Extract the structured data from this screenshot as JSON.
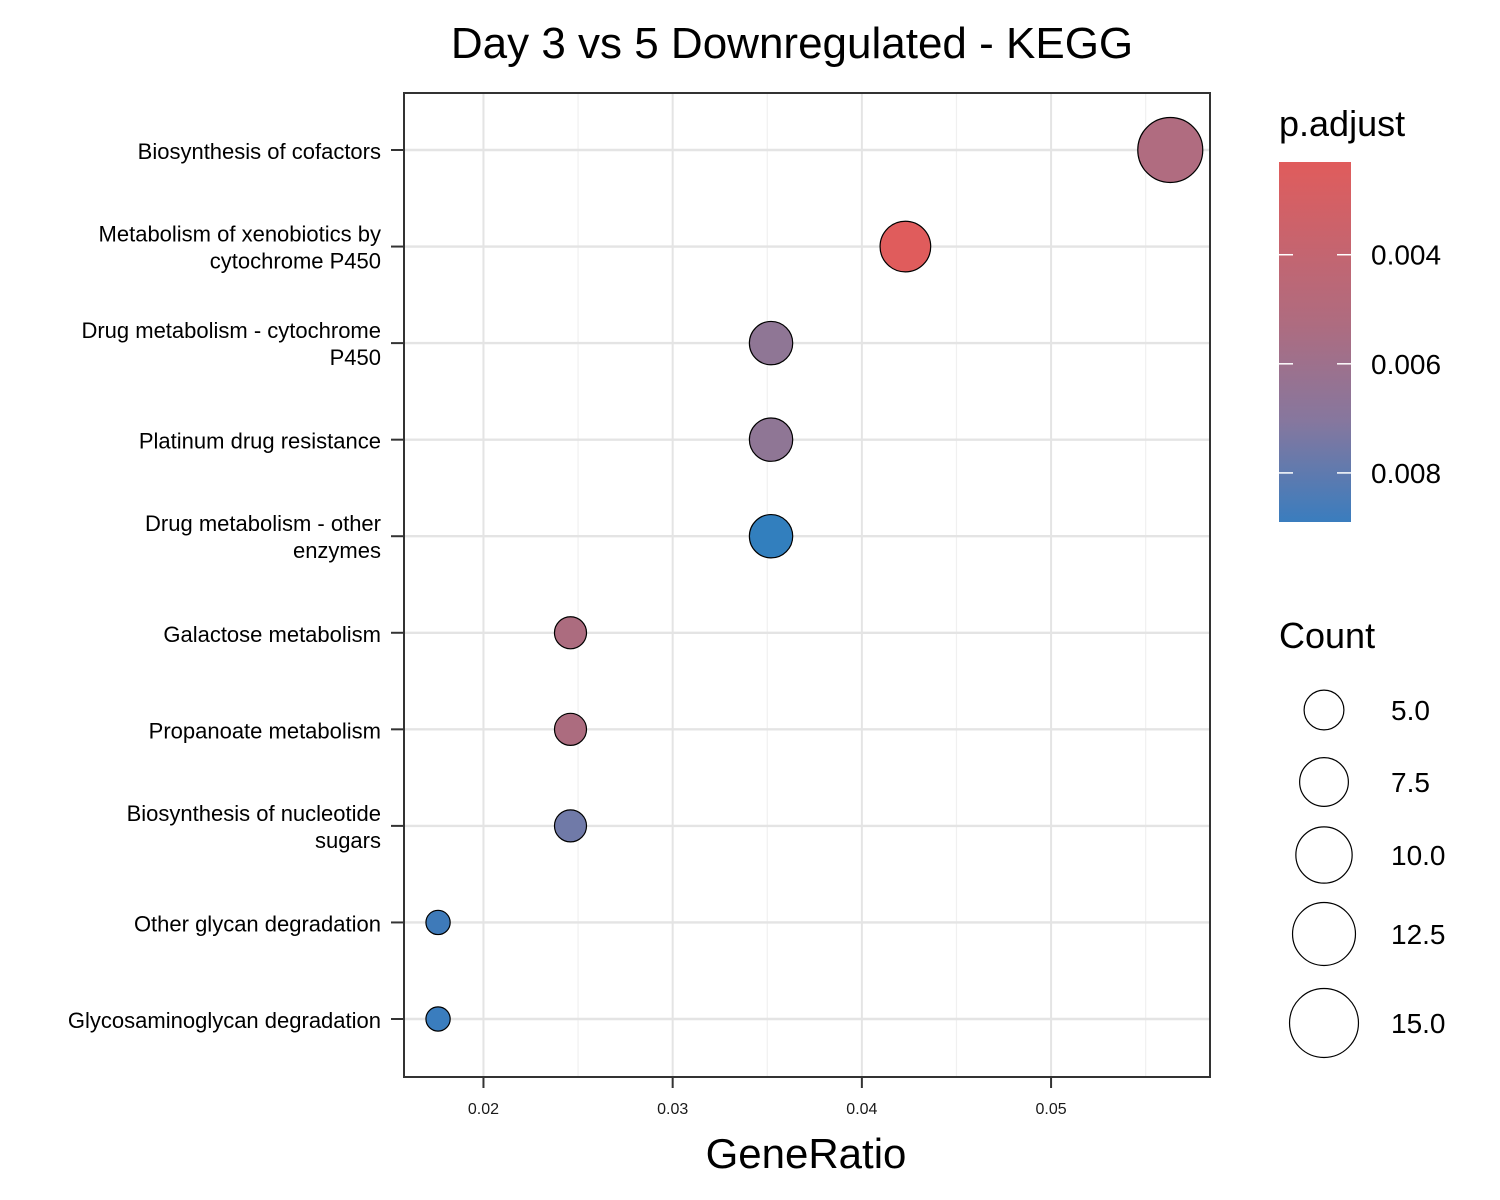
{
  "chart_data": {
    "type": "scatter",
    "title": "Day 3 vs 5 Downregulated - KEGG",
    "xlabel": "GeneRatio",
    "ylabel": "",
    "xlim": [
      0.0158,
      0.0584
    ],
    "x_ticks": [
      "0.02",
      "0.03",
      "0.04",
      "0.05"
    ],
    "x_tick_values": [
      0.02,
      0.03,
      0.04,
      0.05
    ],
    "grid": true,
    "colors": {
      "low_padjust": "#E05C5C",
      "high_padjust": "#3A7DBE",
      "point_stroke": "#000000"
    },
    "points": [
      {
        "term": "Biosynthesis of cofactors",
        "x": 0.0563,
        "count": 16,
        "p_adjust": 0.0045,
        "color": "#B06C80"
      },
      {
        "term": "Metabolism of xenobiotics by\ncytochrome P450",
        "x": 0.0423,
        "count": 12,
        "p_adjust": 0.0025,
        "color": "#E05C5C"
      },
      {
        "term": "Drug metabolism - cytochrome\nP450",
        "x": 0.0352,
        "count": 10,
        "p_adjust": 0.0059,
        "color": "#8F7695"
      },
      {
        "term": "Platinum drug resistance",
        "x": 0.0352,
        "count": 10,
        "p_adjust": 0.0059,
        "color": "#8F7695"
      },
      {
        "term": "Drug metabolism - other\nenzymes",
        "x": 0.0352,
        "count": 10,
        "p_adjust": 0.0088,
        "color": "#327FBE"
      },
      {
        "term": "Galactose metabolism",
        "x": 0.0246,
        "count": 7,
        "p_adjust": 0.0046,
        "color": "#AC6C7F"
      },
      {
        "term": "Propanoate metabolism",
        "x": 0.0246,
        "count": 7,
        "p_adjust": 0.0046,
        "color": "#AC6C7F"
      },
      {
        "term": "Biosynthesis of nucleotide\nsugars",
        "x": 0.0246,
        "count": 7,
        "p_adjust": 0.0073,
        "color": "#707AA8"
      },
      {
        "term": "Other glycan degradation",
        "x": 0.0176,
        "count": 5,
        "p_adjust": 0.0086,
        "color": "#3E7AB9"
      },
      {
        "term": "Glycosaminoglycan degradation",
        "x": 0.0176,
        "count": 5,
        "p_adjust": 0.0088,
        "color": "#3A7DBE"
      }
    ],
    "legend": {
      "placement": "right",
      "color_title": "p.adjust",
      "color_ticks": [
        "0.004",
        "0.006",
        "0.008"
      ],
      "color_tick_values": [
        0.004,
        0.006,
        0.008
      ],
      "color_range": [
        0.0023,
        0.0089
      ],
      "size_title": "Count",
      "size_labels": [
        "5.0",
        "7.5",
        "10.0",
        "12.5",
        "15.0"
      ],
      "size_values": [
        5.0,
        7.5,
        10.0,
        12.5,
        15.0
      ]
    }
  }
}
